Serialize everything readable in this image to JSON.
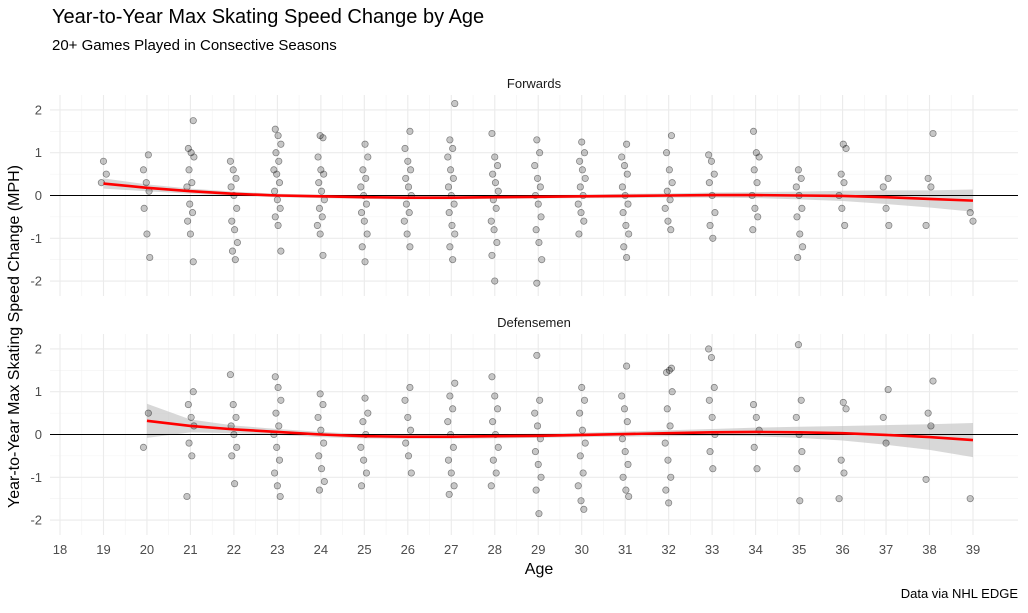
{
  "chart_data": {
    "type": "scatter",
    "title": "Year-to-Year Max Skating Speed Change by Age",
    "subtitle": "20+ Games Played in Consective Seasons",
    "xlabel": "Age",
    "ylabel": "Year-to-Year Max Skating Speed Change (MPH)",
    "caption": "Data via NHL EDGE",
    "xlim": [
      18,
      39
    ],
    "ylim": [
      -2,
      2
    ],
    "x_ticks": [
      18,
      19,
      20,
      21,
      22,
      23,
      24,
      25,
      26,
      27,
      28,
      29,
      30,
      31,
      32,
      33,
      34,
      35,
      36,
      37,
      38,
      39
    ],
    "y_ticks": [
      -2,
      -1,
      0,
      1,
      2
    ],
    "grid": true,
    "reference_line_y": 0,
    "point_color": "#000000",
    "smooth_color": "#ff0000",
    "band_color": "#bebebe",
    "facets": [
      {
        "name": "Forwards",
        "age_points": {
          "19": [
            0.8,
            0.5,
            0.3
          ],
          "20": [
            0.95,
            0.6,
            0.3,
            0.1,
            -0.3,
            -0.9,
            -1.45
          ],
          "21": [
            1.75,
            1.1,
            1.0,
            0.9,
            0.6,
            0.3,
            0.2,
            -0.2,
            -0.4,
            -0.6,
            -0.9,
            -1.55
          ],
          "22": [
            0.8,
            0.6,
            0.4,
            0.2,
            0.0,
            -0.3,
            -0.6,
            -0.8,
            -1.1,
            -1.3,
            -1.5
          ],
          "23": [
            1.55,
            1.4,
            1.2,
            1.0,
            0.8,
            0.6,
            0.5,
            0.3,
            0.1,
            -0.1,
            -0.3,
            -0.5,
            -0.7,
            -1.3
          ],
          "24": [
            1.4,
            1.35,
            0.9,
            0.6,
            0.5,
            0.3,
            0.1,
            -0.1,
            -0.3,
            -0.5,
            -0.7,
            -0.9,
            -1.4
          ],
          "25": [
            1.2,
            0.9,
            0.6,
            0.4,
            0.2,
            0.0,
            -0.2,
            -0.4,
            -0.6,
            -0.9,
            -1.2,
            -1.55
          ],
          "26": [
            1.5,
            1.1,
            0.8,
            0.6,
            0.4,
            0.2,
            0.0,
            -0.2,
            -0.4,
            -0.6,
            -0.9,
            -1.2
          ],
          "27": [
            2.15,
            1.3,
            1.1,
            0.9,
            0.6,
            0.4,
            0.2,
            0.0,
            -0.2,
            -0.4,
            -0.7,
            -0.9,
            -1.2,
            -1.5
          ],
          "28": [
            1.45,
            0.9,
            0.7,
            0.5,
            0.3,
            0.1,
            -0.1,
            -0.3,
            -0.6,
            -0.8,
            -1.1,
            -1.4,
            -2.0
          ],
          "29": [
            1.3,
            1.0,
            0.7,
            0.4,
            0.2,
            0.0,
            -0.2,
            -0.5,
            -0.8,
            -1.1,
            -1.5,
            -2.05
          ],
          "30": [
            1.25,
            1.0,
            0.8,
            0.6,
            0.4,
            0.2,
            0.0,
            -0.2,
            -0.4,
            -0.6,
            -0.9
          ],
          "31": [
            1.2,
            0.9,
            0.7,
            0.5,
            0.2,
            0.0,
            -0.2,
            -0.4,
            -0.7,
            -0.9,
            -1.2,
            -1.45
          ],
          "32": [
            1.4,
            1.0,
            0.6,
            0.3,
            0.1,
            -0.1,
            -0.3,
            -0.6,
            -0.8
          ],
          "33": [
            0.95,
            0.8,
            0.5,
            0.3,
            0.0,
            -0.4,
            -0.7,
            -1.0
          ],
          "34": [
            1.5,
            1.0,
            0.9,
            0.6,
            0.3,
            0.0,
            -0.3,
            -0.5,
            -0.8
          ],
          "35": [
            0.6,
            0.4,
            0.2,
            0.0,
            -0.3,
            -0.5,
            -0.9,
            -1.2,
            -1.45
          ],
          "36": [
            1.2,
            1.1,
            0.5,
            0.3,
            0.0,
            -0.3,
            -0.7
          ],
          "37": [
            0.4,
            0.2,
            -0.3,
            -0.7
          ],
          "38": [
            1.45,
            0.4,
            0.2,
            -0.7
          ],
          "39": [
            -0.4,
            -0.6
          ]
        },
        "smooth": [
          [
            19,
            0.28,
            0.12
          ],
          [
            20,
            0.18,
            0.08
          ],
          [
            21,
            0.1,
            0.06
          ],
          [
            22,
            0.04,
            0.05
          ],
          [
            23,
            0.0,
            0.04
          ],
          [
            24,
            -0.02,
            0.04
          ],
          [
            25,
            -0.04,
            0.04
          ],
          [
            26,
            -0.05,
            0.04
          ],
          [
            27,
            -0.05,
            0.04
          ],
          [
            28,
            -0.04,
            0.04
          ],
          [
            29,
            -0.03,
            0.04
          ],
          [
            30,
            -0.02,
            0.04
          ],
          [
            31,
            -0.01,
            0.05
          ],
          [
            32,
            0.0,
            0.05
          ],
          [
            33,
            0.01,
            0.06
          ],
          [
            34,
            0.01,
            0.07
          ],
          [
            35,
            0.0,
            0.09
          ],
          [
            36,
            -0.01,
            0.12
          ],
          [
            37,
            -0.04,
            0.16
          ],
          [
            38,
            -0.08,
            0.2
          ],
          [
            39,
            -0.12,
            0.26
          ]
        ]
      },
      {
        "name": "Defensemen",
        "age_points": {
          "20": [
            0.5,
            -0.3
          ],
          "21": [
            1.0,
            0.7,
            0.4,
            0.2,
            -0.2,
            -0.5,
            -1.45
          ],
          "22": [
            1.4,
            0.7,
            0.4,
            0.2,
            0.0,
            -0.3,
            -0.5,
            -1.15
          ],
          "23": [
            1.35,
            1.1,
            0.8,
            0.5,
            0.2,
            0.0,
            -0.3,
            -0.6,
            -0.9,
            -1.2,
            -1.45
          ],
          "24": [
            0.95,
            0.7,
            0.4,
            0.1,
            -0.2,
            -0.5,
            -0.8,
            -1.1,
            -1.3
          ],
          "25": [
            0.85,
            0.5,
            0.3,
            0.0,
            -0.3,
            -0.6,
            -0.9,
            -1.2
          ],
          "26": [
            1.1,
            0.8,
            0.4,
            0.1,
            -0.2,
            -0.5,
            -0.9
          ],
          "27": [
            1.2,
            0.9,
            0.6,
            0.3,
            0.0,
            -0.3,
            -0.6,
            -0.9,
            -1.2,
            -1.4
          ],
          "28": [
            1.35,
            0.9,
            0.6,
            0.3,
            0.0,
            -0.3,
            -0.6,
            -0.9,
            -1.2
          ],
          "29": [
            1.85,
            0.8,
            0.5,
            0.2,
            -0.1,
            -0.4,
            -0.7,
            -1.0,
            -1.3,
            -1.85
          ],
          "30": [
            1.1,
            0.8,
            0.5,
            0.1,
            -0.2,
            -0.5,
            -0.9,
            -1.2,
            -1.55,
            -1.75
          ],
          "31": [
            1.6,
            0.9,
            0.6,
            0.3,
            -0.1,
            -0.4,
            -0.7,
            -1.0,
            -1.3,
            -1.45
          ],
          "32": [
            1.55,
            1.45,
            1.5,
            1.0,
            0.6,
            0.2,
            -0.2,
            -0.6,
            -1.0,
            -1.3,
            -1.6
          ],
          "33": [
            2.0,
            1.8,
            1.1,
            0.8,
            0.4,
            0.0,
            -0.4,
            -0.8
          ],
          "34": [
            0.7,
            0.4,
            0.1,
            -0.3,
            -0.8
          ],
          "35": [
            2.1,
            0.8,
            0.4,
            0.0,
            -0.4,
            -0.8,
            -1.55
          ],
          "36": [
            0.75,
            0.6,
            -0.6,
            -0.9,
            -1.5
          ],
          "37": [
            1.05,
            0.4,
            -0.2
          ],
          "38": [
            1.25,
            0.5,
            0.2,
            -1.05
          ],
          "39": [
            -1.5
          ]
        },
        "smooth": [
          [
            20,
            0.32,
            0.4
          ],
          [
            21,
            0.2,
            0.15
          ],
          [
            22,
            0.12,
            0.09
          ],
          [
            23,
            0.06,
            0.07
          ],
          [
            24,
            0.0,
            0.06
          ],
          [
            25,
            -0.04,
            0.05
          ],
          [
            26,
            -0.05,
            0.05
          ],
          [
            27,
            -0.05,
            0.05
          ],
          [
            28,
            -0.04,
            0.05
          ],
          [
            29,
            -0.03,
            0.05
          ],
          [
            30,
            -0.01,
            0.05
          ],
          [
            31,
            0.01,
            0.06
          ],
          [
            32,
            0.03,
            0.07
          ],
          [
            33,
            0.05,
            0.08
          ],
          [
            34,
            0.06,
            0.1
          ],
          [
            35,
            0.05,
            0.13
          ],
          [
            36,
            0.03,
            0.17
          ],
          [
            37,
            -0.01,
            0.23
          ],
          [
            38,
            -0.06,
            0.3
          ],
          [
            39,
            -0.13,
            0.4
          ]
        ]
      }
    ]
  }
}
